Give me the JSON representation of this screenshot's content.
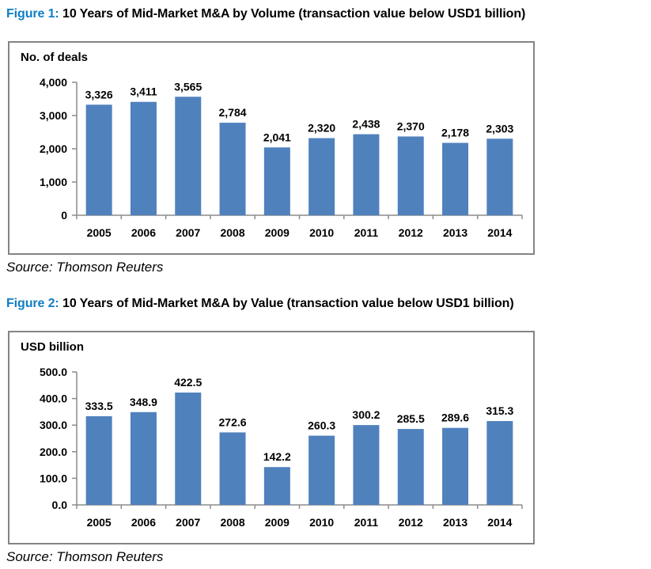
{
  "colors": {
    "title_accent": "#0F7DC2",
    "bar": "#4F81BD",
    "axis": "#8C8C8C",
    "box_border": "#848484",
    "text": "#000000"
  },
  "figures": [
    {
      "label": "Figure 1:",
      "title": "10 Years of Mid-Market M&A by Volume (transaction value below USD1 billion)",
      "unit_label": "No. of deals",
      "source": "Source: Thomson Reuters"
    },
    {
      "label": "Figure 2:",
      "title": "10 Years of Mid-Market M&A by Value (transaction value below USD1 billion)",
      "unit_label": "USD billion",
      "source": "Source: Thomson Reuters"
    }
  ],
  "chart_data": [
    {
      "type": "bar",
      "title": "10 Years of Mid-Market M&A by Volume (transaction value below USD1 billion)",
      "categories": [
        "2005",
        "2006",
        "2007",
        "2008",
        "2009",
        "2010",
        "2011",
        "2012",
        "2013",
        "2014"
      ],
      "values": [
        3326,
        3411,
        3565,
        2784,
        2041,
        2320,
        2438,
        2370,
        2178,
        2303
      ],
      "data_labels": [
        "3,326",
        "3,411",
        "3,565",
        "2,784",
        "2,041",
        "2,320",
        "2,438",
        "2,370",
        "2,178",
        "2,303"
      ],
      "xlabel": "",
      "ylabel": "No. of deals",
      "ylim": [
        0,
        4000
      ],
      "ytick_step": 1000,
      "ytick_labels": [
        "0",
        "1,000",
        "2,000",
        "3,000",
        "4,000"
      ],
      "grid": false,
      "legend_position": "none",
      "bar_color": "#4F81BD",
      "source": "Source: Thomson Reuters"
    },
    {
      "type": "bar",
      "title": "10 Years of Mid-Market M&A by Value (transaction value below USD1 billion)",
      "categories": [
        "2005",
        "2006",
        "2007",
        "2008",
        "2009",
        "2010",
        "2011",
        "2012",
        "2013",
        "2014"
      ],
      "values": [
        333.5,
        348.9,
        422.5,
        272.6,
        142.2,
        260.3,
        300.2,
        285.5,
        289.6,
        315.3
      ],
      "data_labels": [
        "333.5",
        "348.9",
        "422.5",
        "272.6",
        "142.2",
        "260.3",
        "300.2",
        "285.5",
        "289.6",
        "315.3"
      ],
      "xlabel": "",
      "ylabel": "USD billion",
      "ylim": [
        0,
        500
      ],
      "ytick_step": 100,
      "ytick_labels": [
        "0.0",
        "100.0",
        "200.0",
        "300.0",
        "400.0",
        "500.0"
      ],
      "grid": false,
      "legend_position": "none",
      "bar_color": "#4F81BD",
      "source": "Source: Thomson Reuters"
    }
  ]
}
